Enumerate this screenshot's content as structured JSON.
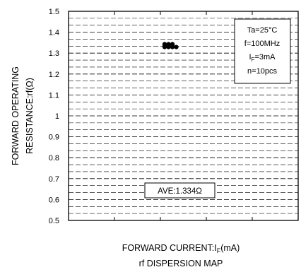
{
  "chart_data": {
    "type": "scatter",
    "ylabel_lines": [
      "FORWARD OPERATING",
      "RESISTANCE:rf(Ω)"
    ],
    "xlabel": {
      "text": "FORWARD CURRENT:I",
      "sub": "F",
      "suffix": "(mA)"
    },
    "caption": "rf DISPERSION MAP",
    "ylim": [
      0.5,
      1.5
    ],
    "yticks": [
      "0.5",
      "0.6",
      "0.7",
      "0.8",
      "0.9",
      "1",
      "1.1",
      "1.2",
      "1.3",
      "1.4",
      "1.5"
    ],
    "x_major_divisions": 5,
    "grid": true,
    "conditions": [
      {
        "text": "Ta=25°C"
      },
      {
        "text": "f=100MHz"
      },
      {
        "text": "I",
        "sub": "F",
        "suffix": "=3mA"
      },
      {
        "text": "n=10pcs"
      }
    ],
    "average_label": "AVE:1.334Ω",
    "points": [
      {
        "x": 0,
        "y": 1.343
      },
      {
        "x": 1,
        "y": 1.343
      },
      {
        "x": 2,
        "y": 1.343
      },
      {
        "x": 0,
        "y": 1.336
      },
      {
        "x": 1,
        "y": 1.336
      },
      {
        "x": 2,
        "y": 1.336
      },
      {
        "x": 0,
        "y": 1.329
      },
      {
        "x": 1,
        "y": 1.329
      },
      {
        "x": 2,
        "y": 1.329
      },
      {
        "x": 3,
        "y": 1.329
      }
    ]
  }
}
